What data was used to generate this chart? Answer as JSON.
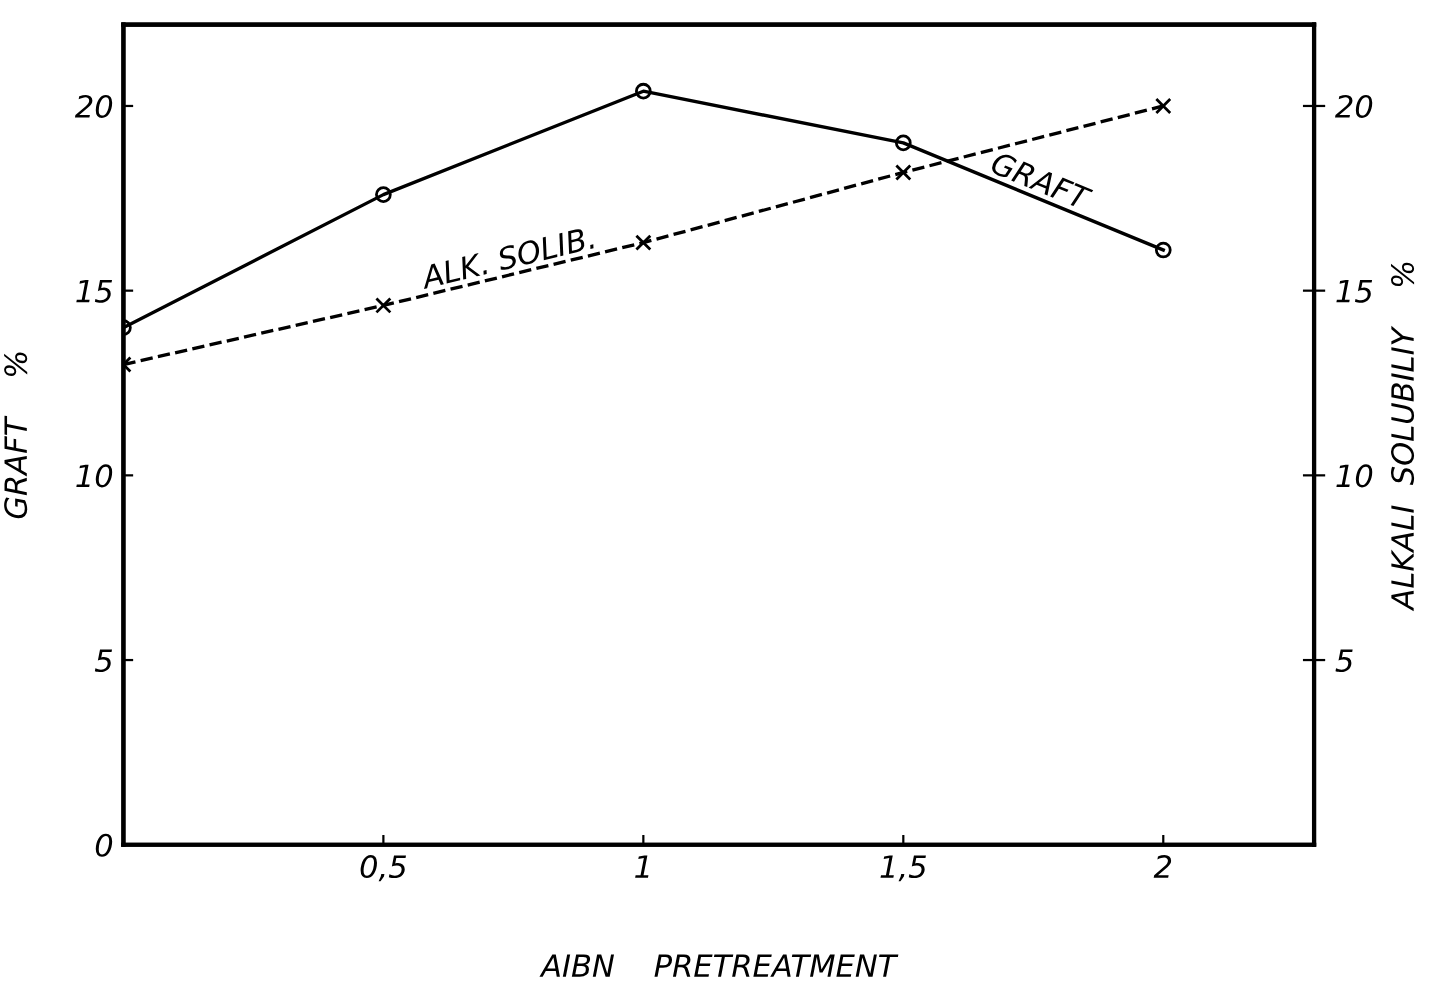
{
  "chart_data": {
    "type": "line",
    "xlabel": "AIBN    PRETREATMENT",
    "ylabel": "GRAFT    %",
    "y2label": "ALKALI  SOLUBILIY    %",
    "x": [
      0,
      0.5,
      1,
      1.5,
      2
    ],
    "series": [
      {
        "name": "GRAFT",
        "color": "#000000",
        "values": [
          14.0,
          17.6,
          20.4,
          19.0,
          16.1
        ],
        "marker": "circle",
        "line_style": "solid"
      },
      {
        "name": "ALK. SOLIB.",
        "color": "#000000",
        "values": [
          13.0,
          14.6,
          16.3,
          18.2,
          20.0
        ],
        "marker": "cross",
        "line_style": "dashed",
        "axis": "y2"
      }
    ],
    "xlim": [
      0,
      2.29
    ],
    "xticks": [
      {
        "value": 0,
        "label": null
      },
      {
        "value": 0.5,
        "label": "0,5"
      },
      1,
      {
        "value": 1.5,
        "label": "1,5"
      },
      2
    ],
    "ylim": [
      0,
      22.2
    ],
    "yticks": [
      0,
      5,
      10,
      15,
      20
    ],
    "y2lim": [
      0,
      22.2
    ],
    "y2ticks": [
      5,
      10,
      15,
      20
    ],
    "grid": false,
    "legend": false
  }
}
